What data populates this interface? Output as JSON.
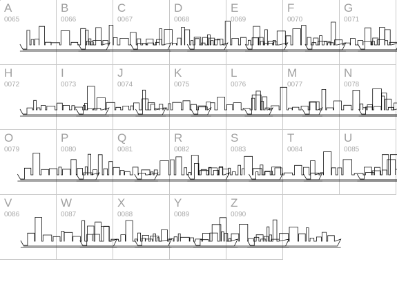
{
  "cells": [
    {
      "letter": "A",
      "code": "0065"
    },
    {
      "letter": "B",
      "code": "0066"
    },
    {
      "letter": "C",
      "code": "0067"
    },
    {
      "letter": "D",
      "code": "0068"
    },
    {
      "letter": "E",
      "code": "0069"
    },
    {
      "letter": "F",
      "code": "0070"
    },
    {
      "letter": "G",
      "code": "0071"
    },
    {
      "letter": "H",
      "code": "0072"
    },
    {
      "letter": "I",
      "code": "0073"
    },
    {
      "letter": "J",
      "code": "0074"
    },
    {
      "letter": "K",
      "code": "0075"
    },
    {
      "letter": "L",
      "code": "0076"
    },
    {
      "letter": "M",
      "code": "0077"
    },
    {
      "letter": "N",
      "code": "0078"
    },
    {
      "letter": "O",
      "code": "0079"
    },
    {
      "letter": "P",
      "code": "0080"
    },
    {
      "letter": "Q",
      "code": "0081"
    },
    {
      "letter": "R",
      "code": "0082"
    },
    {
      "letter": "S",
      "code": "0083"
    },
    {
      "letter": "T",
      "code": "0084"
    },
    {
      "letter": "U",
      "code": "0085"
    },
    {
      "letter": "V",
      "code": "0086"
    },
    {
      "letter": "W",
      "code": "0087"
    },
    {
      "letter": "X",
      "code": "0088"
    },
    {
      "letter": "Y",
      "code": "0089"
    },
    {
      "letter": "Z",
      "code": "0090"
    }
  ]
}
